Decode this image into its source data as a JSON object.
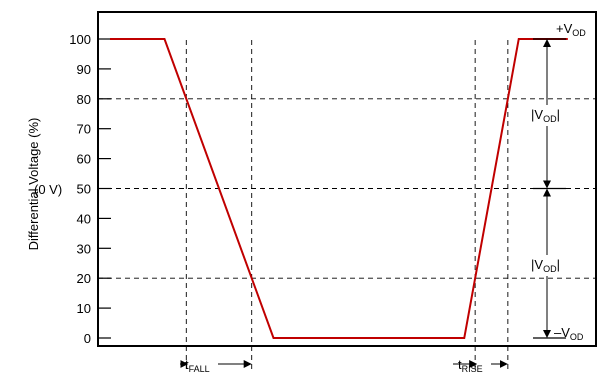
{
  "chart_data": {
    "type": "line",
    "ylabel": "Differential Voltage (%)",
    "ylim": [
      0,
      100
    ],
    "y_ticks": [
      {
        "value": 0,
        "label": "0"
      },
      {
        "value": 10,
        "label": "10"
      },
      {
        "value": 20,
        "label": "20"
      },
      {
        "value": 30,
        "label": "30"
      },
      {
        "value": 40,
        "label": "40"
      },
      {
        "value": 50,
        "label": "50"
      },
      {
        "value": 60,
        "label": "60"
      },
      {
        "value": 70,
        "label": "70"
      },
      {
        "value": 80,
        "label": "80"
      },
      {
        "value": 90,
        "label": "90"
      },
      {
        "value": 100,
        "label": "100"
      }
    ],
    "grid": "dashed reference lines at 20, 50, 80 and at transition times",
    "series": [
      {
        "color": "#c00000",
        "x": [
          0,
          10,
          30,
          35,
          65,
          75,
          81,
          84
        ],
        "y": [
          100,
          100,
          0,
          0,
          0,
          100,
          100,
          100
        ]
      }
    ],
    "reference_levels": [
      20,
      50,
      80
    ],
    "zero_level_label": "(0 V)",
    "annotations": {
      "vod_pos": {
        "base": "+V",
        "sub": "OD"
      },
      "vod_neg": {
        "base": "–V",
        "sub": "OD"
      },
      "vod_upper": {
        "left": "|V",
        "sub": "OD",
        "right": "|"
      },
      "vod_lower": {
        "left": "|V",
        "sub": "OD",
        "right": "|"
      },
      "t_fall": {
        "base": "t",
        "sub": "FALL"
      },
      "t_rise": {
        "base": "t",
        "sub": "RISE"
      }
    }
  }
}
